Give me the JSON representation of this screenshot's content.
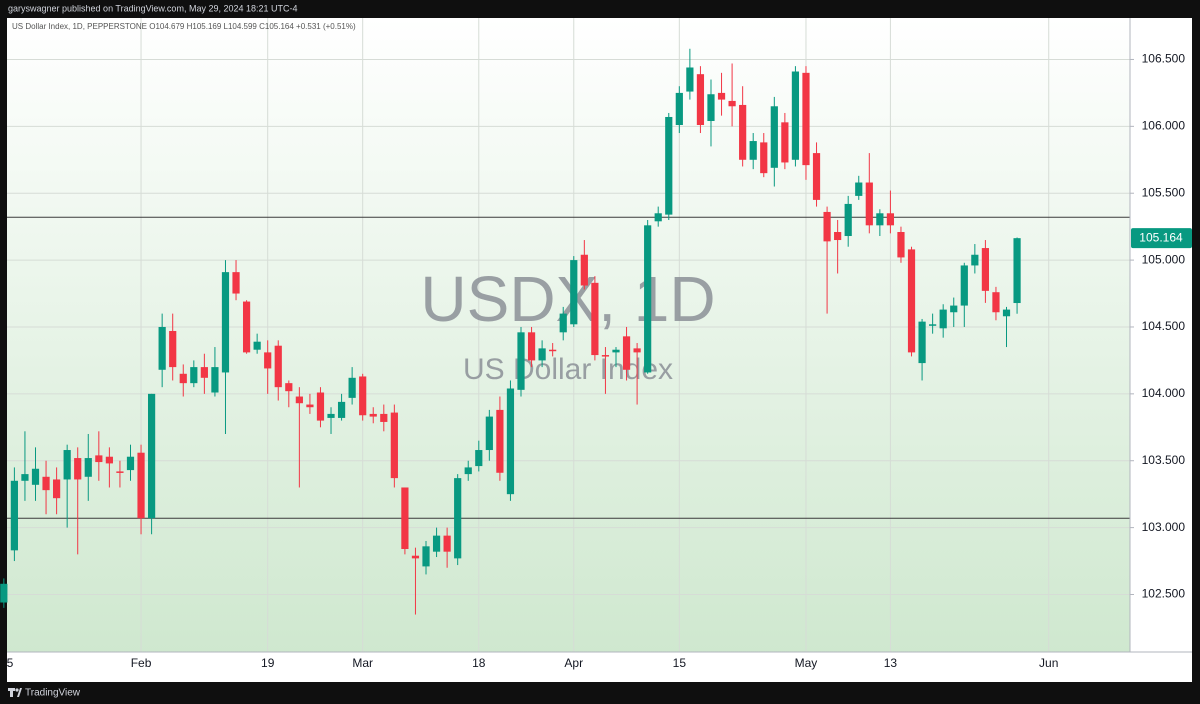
{
  "header": {
    "text": "garyswagner published on TradingView.com, May 29, 2024 18:21 UTC-4"
  },
  "footer": {
    "brand": "TradingView"
  },
  "chart_data": {
    "type": "candlestick",
    "legend_text": "US Dollar Index, 1D, PEPPERSTONE  O104.679  H105.169  L104.599  C105.164  +0.531 (+0.51%)",
    "watermark": "USDX, 1D",
    "watermark_subtitle": "US Dollar Index",
    "up_color": "#089981",
    "down_color": "#f23645",
    "grid": true,
    "xlim": [
      0.3,
      106.7
    ],
    "xticks": [
      {
        "value": 0,
        "label": "5"
      },
      {
        "value": 13,
        "label": "Feb"
      },
      {
        "value": 25,
        "label": "19"
      },
      {
        "value": 34,
        "label": "Mar"
      },
      {
        "value": 45,
        "label": "18"
      },
      {
        "value": 54,
        "label": "Apr"
      },
      {
        "value": 64,
        "label": "15"
      },
      {
        "value": 76,
        "label": "May"
      },
      {
        "value": 84,
        "label": "13"
      },
      {
        "value": 99,
        "label": "Jun"
      }
    ],
    "ylim": [
      102.07,
      106.81
    ],
    "yticks": [
      {
        "value": 102.5,
        "label": "102.500"
      },
      {
        "value": 103,
        "label": "103.000"
      },
      {
        "value": 103.5,
        "label": "103.500"
      },
      {
        "value": 104,
        "label": "104.000"
      },
      {
        "value": 104.5,
        "label": "104.500"
      },
      {
        "value": 105,
        "label": "105.000"
      },
      {
        "value": 105.5,
        "label": "105.500"
      },
      {
        "value": 106,
        "label": "106.000"
      },
      {
        "value": 106.5,
        "label": "106.500"
      }
    ],
    "hlines": [
      105.32,
      103.07
    ],
    "open": [
      102.44,
      102.83,
      103.35,
      103.32,
      103.38,
      103.36,
      103.36,
      103.52,
      103.38,
      103.54,
      103.53,
      103.42,
      103.43,
      103.56,
      103.07,
      104.18,
      104.47,
      104.15,
      104.08,
      104.2,
      104.01,
      104.16,
      104.91,
      104.69,
      104.33,
      104.31,
      104.36,
      104.08,
      103.98,
      103.92,
      104.01,
      103.82,
      103.82,
      103.97,
      104.13,
      103.85,
      103.85,
      103.86,
      103.3,
      102.79,
      102.71,
      102.82,
      102.94,
      102.77,
      103.4,
      103.46,
      103.58,
      103.88,
      103.25,
      104.03,
      104.46,
      104.25,
      104.33,
      104.46,
      104.52,
      105.04,
      104.83,
      104.29,
      104.31,
      104.43,
      104.34,
      104.16,
      105.29,
      105.34,
      106.01,
      106.26,
      106.39,
      106.04,
      106.25,
      106.19,
      106.16,
      105.75,
      105.88,
      105.69,
      106.03,
      105.75,
      106.4,
      105.8,
      105.36,
      105.21,
      105.18,
      105.48,
      105.58,
      105.26,
      105.35,
      105.21,
      105.08,
      104.23,
      104.51,
      104.49,
      104.61,
      104.66,
      104.96,
      105.09,
      104.76,
      104.58,
      104.679
    ],
    "high": [
      102.62,
      103.45,
      103.72,
      103.6,
      103.5,
      103.45,
      103.62,
      103.6,
      103.7,
      103.72,
      103.6,
      103.5,
      103.62,
      103.62,
      104.0,
      104.6,
      104.6,
      104.22,
      104.25,
      104.3,
      104.35,
      105.0,
      105.0,
      104.7,
      104.45,
      104.4,
      104.4,
      104.1,
      104.05,
      104.0,
      104.05,
      103.9,
      104.0,
      104.2,
      104.15,
      103.9,
      103.92,
      103.92,
      103.3,
      102.85,
      102.9,
      103.0,
      103.0,
      103.4,
      103.5,
      103.65,
      103.88,
      103.98,
      104.1,
      104.5,
      104.5,
      104.4,
      104.38,
      104.65,
      105.03,
      105.15,
      104.88,
      104.35,
      104.35,
      104.5,
      104.38,
      105.3,
      105.4,
      106.1,
      106.3,
      106.58,
      106.45,
      106.35,
      106.4,
      106.47,
      106.3,
      105.95,
      105.95,
      106.22,
      106.1,
      106.45,
      106.45,
      105.88,
      105.4,
      105.3,
      105.48,
      105.63,
      105.8,
      105.38,
      105.52,
      105.25,
      105.1,
      104.56,
      104.6,
      104.67,
      104.72,
      104.98,
      105.12,
      105.15,
      104.8,
      104.65,
      105.169
    ],
    "low": [
      102.4,
      102.75,
      103.2,
      103.2,
      103.1,
      103.1,
      103.0,
      102.8,
      103.2,
      103.35,
      103.3,
      103.3,
      103.35,
      102.95,
      102.95,
      104.05,
      104.1,
      103.98,
      104.05,
      104.0,
      103.98,
      103.7,
      104.7,
      104.3,
      104.3,
      104.0,
      103.95,
      103.9,
      103.3,
      103.85,
      103.75,
      103.7,
      103.8,
      103.92,
      103.8,
      103.78,
      103.72,
      103.3,
      102.8,
      102.35,
      102.65,
      102.78,
      102.7,
      102.72,
      103.35,
      103.42,
      103.5,
      103.35,
      103.2,
      103.98,
      104.2,
      104.2,
      104.28,
      104.4,
      104.5,
      104.78,
      104.25,
      104.0,
      104.2,
      104.1,
      103.92,
      104.15,
      105.25,
      105.3,
      105.95,
      106.2,
      105.95,
      105.85,
      106.08,
      106.0,
      105.7,
      105.68,
      105.62,
      105.55,
      105.68,
      105.7,
      105.6,
      105.4,
      104.6,
      104.9,
      105.1,
      105.45,
      105.2,
      105.18,
      105.2,
      104.98,
      104.28,
      104.1,
      104.45,
      104.42,
      104.5,
      104.5,
      104.9,
      104.68,
      104.55,
      104.35,
      104.599
    ],
    "close": [
      102.58,
      103.35,
      103.4,
      103.44,
      103.28,
      103.22,
      103.58,
      103.36,
      103.52,
      103.49,
      103.48,
      103.41,
      103.53,
      103.07,
      104.0,
      104.5,
      104.2,
      104.08,
      104.2,
      104.12,
      104.2,
      104.91,
      104.75,
      104.31,
      104.39,
      104.19,
      104.05,
      104.02,
      103.93,
      103.9,
      103.8,
      103.85,
      103.94,
      104.12,
      103.84,
      103.83,
      103.79,
      103.37,
      102.84,
      102.77,
      102.86,
      102.94,
      102.82,
      103.37,
      103.45,
      103.58,
      103.83,
      103.41,
      104.04,
      104.46,
      104.25,
      104.34,
      104.32,
      104.6,
      105.0,
      104.81,
      104.29,
      104.28,
      104.33,
      104.18,
      104.31,
      105.26,
      105.35,
      106.07,
      106.25,
      106.44,
      106.01,
      106.24,
      106.2,
      106.15,
      105.75,
      105.89,
      105.65,
      106.15,
      105.73,
      106.41,
      105.71,
      105.45,
      105.14,
      105.15,
      105.42,
      105.58,
      105.26,
      105.35,
      105.26,
      105.02,
      104.31,
      104.54,
      104.52,
      104.63,
      104.66,
      104.96,
      105.04,
      104.77,
      104.61,
      104.63,
      105.164
    ]
  }
}
